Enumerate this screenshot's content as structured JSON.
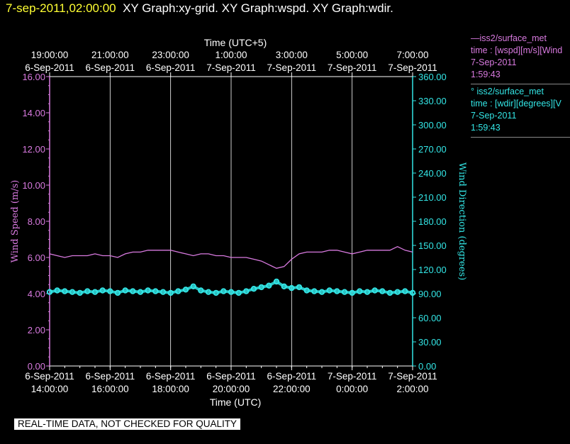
{
  "header": {
    "timestamp": "7-sep-2011,02:00:00",
    "graphs": "XY Graph:xy-grid.  XY Graph:wspd.  XY Graph:wdir."
  },
  "legend": [
    {
      "line1": "—iss2/surface_met",
      "line2": "time : [wspd][m/s][Wind",
      "line3": "7-Sep-2011",
      "line4": "1:59:43",
      "color": "#d97ae0"
    },
    {
      "line1": "° iss2/surface_met",
      "line2": "time : [wdir][degrees][V",
      "line3": "7-Sep-2011",
      "line4": "1:59:43",
      "color": "#33e6e6"
    }
  ],
  "banner": "REAL-TIME DATA, NOT CHECKED FOR QUALITY",
  "chart_data": {
    "type": "line",
    "xlabel_bottom": "Time (UTC)",
    "xlabel_top": "Time (UTC+5)",
    "ylabel_left": "Wind Speed (m/s)",
    "ylabel_right": "Wind Direction (degrees)",
    "x_range_hours": [
      14,
      26
    ],
    "ylim_left": [
      0,
      16
    ],
    "ylim_right": [
      0,
      360
    ],
    "grid": true,
    "bottom_ticks": [
      {
        "hour": 14,
        "date": "6-Sep-2011",
        "time": "14:00:00"
      },
      {
        "hour": 16,
        "date": "6-Sep-2011",
        "time": "16:00:00"
      },
      {
        "hour": 18,
        "date": "6-Sep-2011",
        "time": "18:00:00"
      },
      {
        "hour": 20,
        "date": "6-Sep-2011",
        "time": "20:00:00"
      },
      {
        "hour": 22,
        "date": "6-Sep-2011",
        "time": "22:00:00"
      },
      {
        "hour": 24,
        "date": "7-Sep-2011",
        "time": "0:00:00"
      },
      {
        "hour": 26,
        "date": "7-Sep-2011",
        "time": "2:00:00"
      }
    ],
    "top_ticks": [
      {
        "hour": 14,
        "date": "6-Sep-2011",
        "time": "19:00:00"
      },
      {
        "hour": 16,
        "date": "6-Sep-2011",
        "time": "21:00:00"
      },
      {
        "hour": 18,
        "date": "6-Sep-2011",
        "time": "23:00:00"
      },
      {
        "hour": 20,
        "date": "7-Sep-2011",
        "time": "1:00:00"
      },
      {
        "hour": 22,
        "date": "7-Sep-2011",
        "time": "3:00:00"
      },
      {
        "hour": 24,
        "date": "7-Sep-2011",
        "time": "5:00:00"
      },
      {
        "hour": 26,
        "date": "7-Sep-2011",
        "time": "7:00:00"
      }
    ],
    "left_ticks": [
      "0.00",
      "2.00",
      "4.00",
      "6.00",
      "8.00",
      "10.00",
      "12.00",
      "14.00",
      "16.00"
    ],
    "right_ticks": [
      "0.00",
      "30.00",
      "60.00",
      "90.00",
      "120.00",
      "150.00",
      "180.00",
      "210.00",
      "240.00",
      "270.00",
      "300.00",
      "330.00",
      "360.00"
    ],
    "series": [
      {
        "name": "iss2/surface_met time : [wspd][m/s]",
        "axis": "left",
        "color": "#d97ae0",
        "x": [
          14.0,
          14.25,
          14.5,
          14.75,
          15.0,
          15.25,
          15.5,
          15.75,
          16.0,
          16.25,
          16.5,
          16.75,
          17.0,
          17.25,
          17.5,
          17.75,
          18.0,
          18.25,
          18.5,
          18.75,
          19.0,
          19.25,
          19.5,
          19.75,
          20.0,
          20.25,
          20.5,
          20.75,
          21.0,
          21.25,
          21.5,
          21.75,
          22.0,
          22.25,
          22.5,
          22.75,
          23.0,
          23.25,
          23.5,
          23.75,
          24.0,
          24.25,
          24.5,
          24.75,
          25.0,
          25.25,
          25.5,
          25.75,
          26.0
        ],
        "y": [
          6.2,
          6.1,
          6.0,
          6.1,
          6.1,
          6.1,
          6.2,
          6.1,
          6.1,
          6.0,
          6.2,
          6.3,
          6.3,
          6.4,
          6.4,
          6.4,
          6.4,
          6.3,
          6.2,
          6.1,
          6.2,
          6.2,
          6.1,
          6.1,
          6.0,
          6.0,
          6.0,
          5.9,
          5.8,
          5.6,
          5.4,
          5.5,
          5.9,
          6.2,
          6.3,
          6.3,
          6.3,
          6.4,
          6.4,
          6.3,
          6.2,
          6.3,
          6.4,
          6.4,
          6.4,
          6.4,
          6.6,
          6.4,
          6.3
        ]
      },
      {
        "name": "iss2/surface_met time : [wdir][degrees]",
        "axis": "right",
        "color": "#33e6e6",
        "x": [
          14.0,
          14.25,
          14.5,
          14.75,
          15.0,
          15.25,
          15.5,
          15.75,
          16.0,
          16.25,
          16.5,
          16.75,
          17.0,
          17.25,
          17.5,
          17.75,
          18.0,
          18.25,
          18.5,
          18.75,
          19.0,
          19.25,
          19.5,
          19.75,
          20.0,
          20.25,
          20.5,
          20.75,
          21.0,
          21.25,
          21.5,
          21.75,
          22.0,
          22.25,
          22.5,
          22.75,
          23.0,
          23.25,
          23.5,
          23.75,
          24.0,
          24.25,
          24.5,
          24.75,
          25.0,
          25.25,
          25.5,
          25.75,
          26.0
        ],
        "y": [
          92,
          94,
          93,
          92,
          91,
          93,
          92,
          94,
          93,
          91,
          94,
          93,
          92,
          94,
          93,
          92,
          91,
          93,
          95,
          99,
          94,
          92,
          91,
          93,
          92,
          91,
          93,
          96,
          98,
          100,
          105,
          99,
          97,
          98,
          94,
          93,
          92,
          94,
          93,
          92,
          91,
          93,
          92,
          94,
          93,
          91,
          92,
          93,
          91
        ]
      }
    ]
  }
}
